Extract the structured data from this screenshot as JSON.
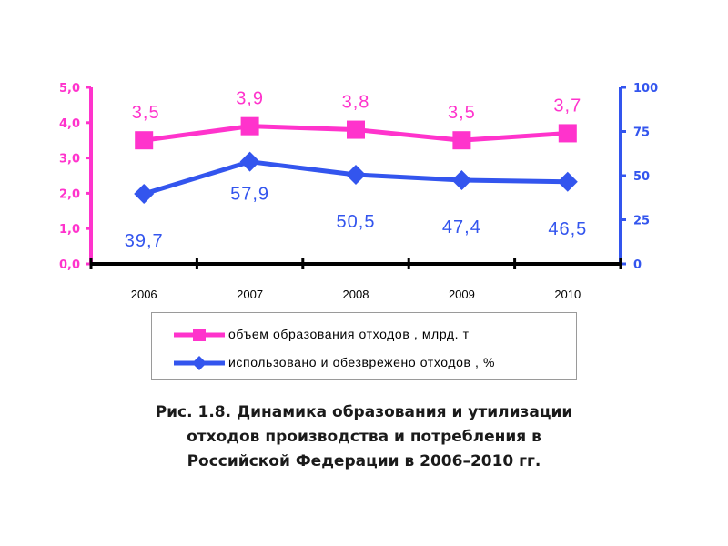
{
  "chart_data": {
    "type": "line",
    "x": [
      "2006",
      "2007",
      "2008",
      "2009",
      "2010"
    ],
    "series": [
      {
        "name": "объем образования отходов , млрд. т",
        "axis": "left",
        "color": "#ff33cc",
        "marker": "square",
        "values": [
          3.5,
          3.9,
          3.8,
          3.5,
          3.7
        ],
        "labels": [
          "3,5",
          "3,9",
          "3,8",
          "3,5",
          "3,7"
        ]
      },
      {
        "name": "использовано и обезврежено отходов , %",
        "axis": "right",
        "color": "#3355ee",
        "marker": "diamond",
        "values": [
          39.7,
          57.9,
          50.5,
          47.4,
          46.5
        ],
        "labels": [
          "39,7",
          "57,9",
          "50,5",
          "47,4",
          "46,5"
        ]
      }
    ],
    "y_left": {
      "range": [
        0,
        5
      ],
      "ticks": [
        "0,0",
        "1,0",
        "2,0",
        "3,0",
        "4,0",
        "5,0"
      ],
      "color": "#ff33cc"
    },
    "y_right": {
      "range": [
        0,
        100
      ],
      "ticks": [
        "0",
        "25",
        "50",
        "75",
        "100"
      ],
      "color": "#3355ee"
    },
    "grid": false,
    "legend_position": "bottom"
  },
  "caption": {
    "line1": "Рис. 1.8. Динамика образования и утилизации",
    "line2": "отходов производства и потребления в",
    "line3": "Российской Федерации в 2006–2010 гг."
  }
}
